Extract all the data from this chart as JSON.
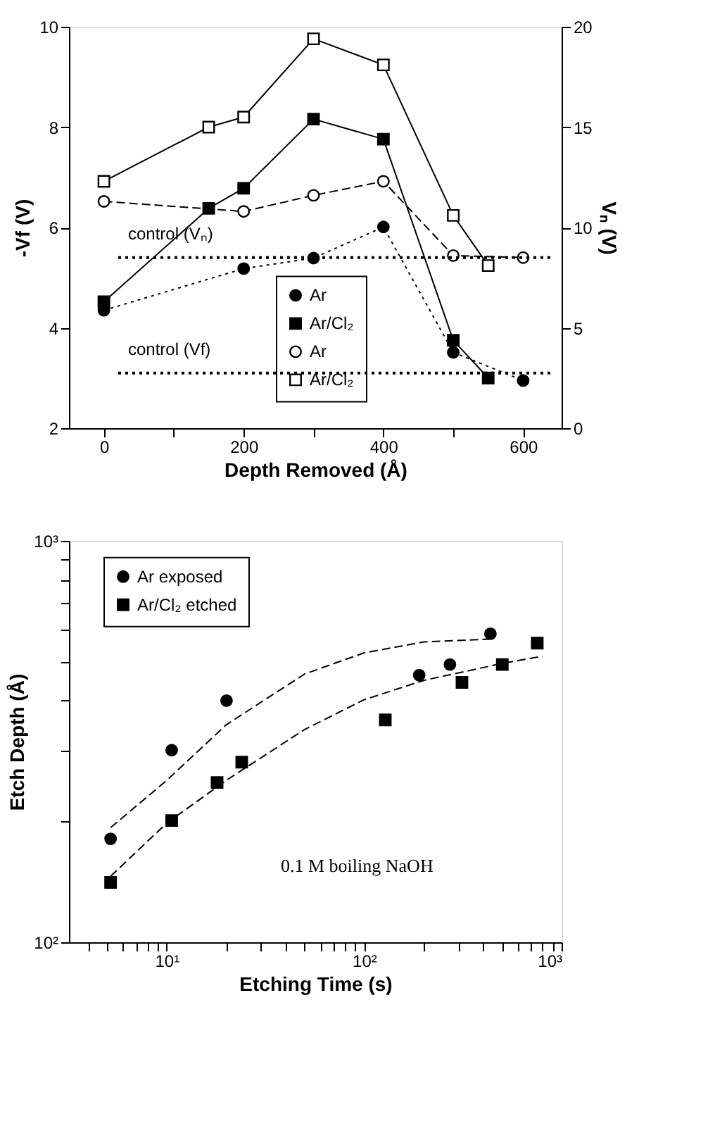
{
  "chart_data": [
    {
      "type": "line",
      "xlabel": "Depth Removed (Å)",
      "ylabel": "-Vf (V)",
      "y2label": "Vₙ (V)",
      "xlim": [
        -50,
        655
      ],
      "xticks": [
        0,
        {
          "value": 100,
          "label": null
        },
        200,
        {
          "value": 300,
          "label": null
        },
        400,
        {
          "value": 500,
          "label": null
        },
        600
      ],
      "ylim": [
        2,
        10
      ],
      "yticks": [
        2,
        4,
        6,
        8,
        10
      ],
      "y2lim": [
        0,
        20
      ],
      "y2ticks": [
        0,
        5,
        10,
        15,
        20
      ],
      "grid": false,
      "legend": "bottom right",
      "series": [
        {
          "name": "Ar",
          "color": "#000000",
          "marker": "circle",
          "line_style": "dotted",
          "x": [
            0,
            200,
            300,
            400,
            500,
            600
          ],
          "values": [
            4.35,
            5.18,
            5.39,
            6.01,
            3.51,
            2.95
          ]
        },
        {
          "name": "Ar/Cl₂",
          "color": "#000000",
          "marker": "square",
          "line_style": "solid",
          "x": [
            0,
            150,
            200,
            300,
            400,
            500,
            550
          ],
          "values": [
            4.52,
            6.38,
            6.78,
            8.16,
            7.76,
            3.75,
            3.0
          ]
        },
        {
          "name": "Ar",
          "color": "#000000",
          "marker": "circle",
          "line_style": "dashed",
          "axis": "y2",
          "x": [
            0,
            200,
            300,
            400,
            500,
            600
          ],
          "values": [
            11.3,
            10.8,
            11.6,
            12.3,
            8.6,
            8.5
          ]
        },
        {
          "name": "Ar/Cl₂",
          "color": "#000000",
          "marker": "square",
          "line_style": "solid",
          "axis": "y2",
          "x": [
            0,
            150,
            200,
            300,
            400,
            500,
            550
          ],
          "values": [
            12.3,
            15.0,
            15.5,
            19.4,
            18.1,
            10.6,
            8.1
          ]
        }
      ],
      "ref_lines": [
        {
          "axis": "y2",
          "value": 8.5,
          "label": "control (Vₙ)",
          "color": "#000000",
          "line_style": "dotted"
        },
        {
          "axis": "y",
          "value": 3.1,
          "label": "control (Vf)",
          "color": "#000000",
          "line_style": "dotted"
        }
      ]
    },
    {
      "type": "scatter",
      "xlabel": "Etching Time (s)",
      "ylabel": "Etch Depth (Å)",
      "log": "xy",
      "xlim": [
        3.2,
        1000
      ],
      "xticks": [
        {
          "value": 4,
          "label": null
        },
        {
          "value": 5,
          "label": null
        },
        {
          "value": 6,
          "label": null
        },
        {
          "value": 7,
          "label": null
        },
        {
          "value": 8,
          "label": null
        },
        {
          "value": 9,
          "label": null
        },
        {
          "value": 10,
          "label": "10¹"
        },
        {
          "value": 20,
          "label": null
        },
        {
          "value": 30,
          "label": null
        },
        {
          "value": 40,
          "label": null
        },
        {
          "value": 50,
          "label": null
        },
        {
          "value": 60,
          "label": null
        },
        {
          "value": 70,
          "label": null
        },
        {
          "value": 80,
          "label": null
        },
        {
          "value": 90,
          "label": null
        },
        {
          "value": 100,
          "label": "10²"
        },
        {
          "value": 200,
          "label": null
        },
        {
          "value": 300,
          "label": null
        },
        {
          "value": 400,
          "label": null
        },
        {
          "value": 500,
          "label": null
        },
        {
          "value": 600,
          "label": null
        },
        {
          "value": 700,
          "label": null
        },
        {
          "value": 800,
          "label": null
        },
        {
          "value": 900,
          "label": null
        },
        {
          "value": 1000,
          "label": "10³"
        }
      ],
      "ylim": [
        100,
        1000
      ],
      "yticks": [
        {
          "value": 100,
          "label": "10²"
        },
        {
          "value": 200,
          "label": null
        },
        {
          "value": 300,
          "label": null
        },
        {
          "value": 400,
          "label": null
        },
        {
          "value": 500,
          "label": null
        },
        {
          "value": 600,
          "label": null
        },
        {
          "value": 700,
          "label": null
        },
        {
          "value": 800,
          "label": null
        },
        {
          "value": 900,
          "label": null
        },
        {
          "value": 1000,
          "label": "10³"
        }
      ],
      "grid": false,
      "legend": "top left",
      "annotations": [
        "0.1 M boiling NaOH"
      ],
      "series": [
        {
          "name": "Ar exposed",
          "color": "#000000",
          "marker": "circle",
          "x": [
            5.2,
            10.6,
            20.1,
            190,
            272,
            436
          ],
          "values": [
            181,
            301,
            400,
            463,
            492,
            587
          ]
        },
        {
          "name": "Ar/Cl₂ etched",
          "color": "#000000",
          "marker": "square",
          "x": [
            5.2,
            10.6,
            18.0,
            24.0,
            128,
            313,
            501,
            753
          ],
          "values": [
            141,
            201,
            250,
            281,
            358,
            444,
            492,
            556
          ]
        },
        {
          "type": "line",
          "color": "#000000",
          "line_style": "dashed",
          "x": [
            5.2,
            10,
            20,
            50,
            100,
            200,
            430
          ],
          "values": [
            193,
            253,
            348,
            466,
            526,
            560,
            569
          ]
        },
        {
          "type": "line",
          "color": "#000000",
          "line_style": "dashed",
          "x": [
            5.2,
            10,
            20,
            50,
            100,
            200,
            500,
            800
          ],
          "values": [
            146,
            198,
            253,
            339,
            402,
            449,
            495,
            516
          ]
        }
      ]
    }
  ]
}
